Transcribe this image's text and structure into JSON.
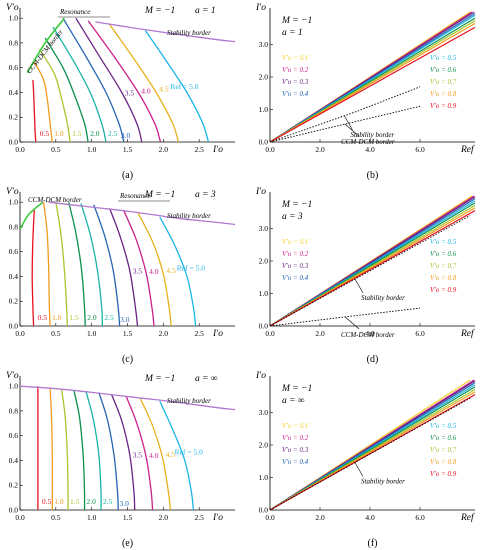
{
  "chart_data": [
    {
      "id": "a",
      "type": "line",
      "caption": "(a)",
      "ylabel": "V'o",
      "xlabel": "I'o",
      "params": [
        "M = −1",
        "a = 1"
      ],
      "xlim": [
        0,
        3
      ],
      "ylim": [
        0,
        1.05
      ],
      "xticks": [
        "0.0",
        "0.5",
        "1.0",
        "1.5",
        "2.0",
        "2.5"
      ],
      "yticks": [
        "0.0",
        "0.2",
        "0.4",
        "0.6",
        "0.8",
        "1.0"
      ],
      "annotations": {
        "stability": "Stability border",
        "ccm": "CCM-DCM border",
        "resonance": "Resonance"
      },
      "stability": {
        "x": [
          1.05,
          1.6,
          2.2,
          2.7,
          3.0
        ],
        "y": [
          0.97,
          0.92,
          0.87,
          0.83,
          0.81
        ]
      },
      "ccm": {
        "x": [
          0.1,
          0.35,
          0.62
        ],
        "y": [
          0.56,
          0.8,
          1.0
        ]
      },
      "series": [
        {
          "label": "0.5",
          "color": "#e8101e",
          "x": [
            0.18,
            0.19,
            0.2,
            0.21,
            0.22
          ],
          "y": [
            0.5,
            0.4,
            0.25,
            0.1,
            0.0
          ]
        },
        {
          "label": "1.0",
          "color": "#f39a1c",
          "x": [
            0.2,
            0.33,
            0.38,
            0.42,
            0.45
          ],
          "y": [
            0.65,
            0.5,
            0.35,
            0.15,
            0.0
          ]
        },
        {
          "label": "1.5",
          "color": "#a7c62f",
          "x": [
            0.27,
            0.48,
            0.58,
            0.66,
            0.7
          ],
          "y": [
            0.75,
            0.55,
            0.35,
            0.15,
            0.0
          ]
        },
        {
          "label": "2.0",
          "color": "#0b8f4e",
          "x": [
            0.35,
            0.6,
            0.76,
            0.9,
            0.95
          ],
          "y": [
            0.84,
            0.6,
            0.38,
            0.15,
            0.0
          ]
        },
        {
          "label": "2.5",
          "color": "#1ab3a6",
          "x": [
            0.46,
            0.75,
            0.98,
            1.14,
            1.2
          ],
          "y": [
            0.93,
            0.65,
            0.4,
            0.15,
            0.0
          ]
        },
        {
          "label": "3.0",
          "color": "#2565b3",
          "x": [
            0.6,
            0.93,
            1.2,
            1.38,
            1.45
          ],
          "y": [
            1.0,
            0.68,
            0.4,
            0.15,
            0.0
          ]
        },
        {
          "label": "3.5",
          "color": "#6b2386",
          "x": [
            0.78,
            1.1,
            1.42,
            1.63,
            1.7
          ],
          "y": [
            1.0,
            0.7,
            0.4,
            0.15,
            0.0
          ]
        },
        {
          "label": "4.0",
          "color": "#cc1f8c",
          "x": [
            0.95,
            1.3,
            1.65,
            1.88,
            1.96
          ],
          "y": [
            0.98,
            0.7,
            0.4,
            0.15,
            0.0
          ]
        },
        {
          "label": "4.5",
          "color": "#e7b01c",
          "x": [
            1.25,
            1.58,
            1.9,
            2.13,
            2.21
          ],
          "y": [
            0.95,
            0.68,
            0.4,
            0.15,
            0.0
          ]
        },
        {
          "label": "Ref = 5.0",
          "color": "#1ab5e6",
          "x": [
            1.75,
            2.07,
            2.35,
            2.55,
            2.63
          ],
          "y": [
            0.9,
            0.63,
            0.38,
            0.15,
            0.0
          ]
        }
      ]
    },
    {
      "id": "b",
      "type": "line",
      "caption": "(b)",
      "ylabel": "I'o",
      "xlabel": "Ref",
      "params": [
        "M = −1",
        "a = 1"
      ],
      "xlim": [
        0,
        8.2
      ],
      "ylim": [
        0,
        4
      ],
      "xticks": [
        "0.0",
        "2.0",
        "4.0",
        "6.0"
      ],
      "yticks": [
        "0.0",
        "1.0",
        "2.0",
        "3.0"
      ],
      "annotations": {
        "stability": "Stability border",
        "ccm": "CCM-DCM border"
      },
      "stability": {
        "x": [
          0,
          3.5,
          6
        ],
        "y": [
          0,
          0.95,
          1.7
        ]
      },
      "ccm": {
        "x": [
          0,
          3.0,
          6.0
        ],
        "y": [
          0,
          0.55,
          1.1
        ]
      },
      "series": [
        {
          "label": "V'o = 0.1",
          "color": "#f4d02a",
          "slope": 0.5
        },
        {
          "label": "V'o = 0.2",
          "color": "#cc1f8c",
          "slope": 0.495
        },
        {
          "label": "V'o = 0.3",
          "color": "#6b2386",
          "slope": 0.49
        },
        {
          "label": "V'o = 0.4",
          "color": "#2565b3",
          "slope": 0.482
        },
        {
          "label": "V'o = 0.5",
          "color": "#1ab5e6",
          "slope": 0.475
        },
        {
          "label": "V'o = 0.6",
          "color": "#0b8f4e",
          "slope": 0.465
        },
        {
          "label": "V'o = 0.7",
          "color": "#a7c62f",
          "slope": 0.455
        },
        {
          "label": "V'o = 0.8",
          "color": "#f39a1c",
          "slope": 0.445
        },
        {
          "label": "V'o = 0.9",
          "color": "#e8101e",
          "slope": 0.43
        }
      ]
    },
    {
      "id": "c",
      "type": "line",
      "caption": "(c)",
      "ylabel": "V'o",
      "xlabel": "I'o",
      "params": [
        "M = −1",
        "a = 3"
      ],
      "xlim": [
        0,
        3
      ],
      "ylim": [
        0,
        1.05
      ],
      "xticks": [
        "0.0",
        "0.5",
        "1.0",
        "1.5",
        "2.0",
        "2.5"
      ],
      "yticks": [
        "0.0",
        "0.2",
        "0.4",
        "0.6",
        "0.8",
        "1.0"
      ],
      "annotations": {
        "stability": "Stability border",
        "ccm": "CCM-DCM border",
        "resonance": "Resonance"
      },
      "stability": {
        "x": [
          0.4,
          1.0,
          1.6,
          2.2,
          2.7,
          3.0
        ],
        "y": [
          1.0,
          0.96,
          0.92,
          0.87,
          0.84,
          0.82
        ]
      },
      "ccm": {
        "x": [
          0.0,
          0.12,
          0.32
        ],
        "y": [
          0.78,
          0.9,
          1.0
        ]
      },
      "series": [
        {
          "label": "0.5",
          "color": "#e8101e",
          "x": [
            0.2,
            0.18,
            0.17,
            0.18,
            0.19
          ],
          "y": [
            0.95,
            0.7,
            0.4,
            0.15,
            0.0
          ]
        },
        {
          "label": "1.0",
          "color": "#f39a1c",
          "x": [
            0.33,
            0.38,
            0.4,
            0.41,
            0.42
          ],
          "y": [
            1.0,
            0.75,
            0.45,
            0.15,
            0.0
          ]
        },
        {
          "label": "1.5",
          "color": "#a7c62f",
          "x": [
            0.5,
            0.57,
            0.62,
            0.65,
            0.66
          ],
          "y": [
            1.0,
            0.75,
            0.45,
            0.15,
            0.0
          ]
        },
        {
          "label": "2.0",
          "color": "#0b8f4e",
          "x": [
            0.68,
            0.78,
            0.86,
            0.9,
            0.91
          ],
          "y": [
            1.0,
            0.75,
            0.45,
            0.15,
            0.0
          ]
        },
        {
          "label": "2.5",
          "color": "#1ab3a6",
          "x": [
            0.85,
            0.98,
            1.08,
            1.14,
            1.15
          ],
          "y": [
            0.99,
            0.74,
            0.45,
            0.15,
            0.0
          ]
        },
        {
          "label": "3.0",
          "color": "#2565b3",
          "x": [
            1.03,
            1.18,
            1.3,
            1.37,
            1.39
          ],
          "y": [
            0.98,
            0.73,
            0.45,
            0.15,
            0.0
          ]
        },
        {
          "label": "3.5",
          "color": "#6b2386",
          "x": [
            1.25,
            1.4,
            1.53,
            1.61,
            1.64
          ],
          "y": [
            0.95,
            0.72,
            0.45,
            0.15,
            0.0
          ]
        },
        {
          "label": "4.0",
          "color": "#cc1f8c",
          "x": [
            1.45,
            1.62,
            1.76,
            1.84,
            1.87
          ],
          "y": [
            0.93,
            0.7,
            0.43,
            0.15,
            0.0
          ]
        },
        {
          "label": "4.5",
          "color": "#e7b01c",
          "x": [
            1.65,
            1.85,
            2.0,
            2.08,
            2.11
          ],
          "y": [
            0.91,
            0.68,
            0.42,
            0.15,
            0.0
          ]
        },
        {
          "label": "Ref = 5.0",
          "color": "#1ab5e6",
          "x": [
            1.95,
            2.16,
            2.33,
            2.42,
            2.45
          ],
          "y": [
            0.88,
            0.65,
            0.4,
            0.15,
            0.0
          ]
        }
      ]
    },
    {
      "id": "d",
      "type": "line",
      "caption": "(d)",
      "ylabel": "I'o",
      "xlabel": "Ref",
      "params": [
        "M = −1",
        "a = 3"
      ],
      "xlim": [
        0,
        8.2
      ],
      "ylim": [
        0,
        4
      ],
      "xticks": [
        "0.0",
        "2.0",
        "4.0",
        "6.0"
      ],
      "yticks": [
        "0.0",
        "1.0",
        "2.0",
        "3.0"
      ],
      "annotations": {
        "stability": "Stability border",
        "ccm": "CCM-DCM border"
      },
      "stability": {
        "x": [
          0,
          4,
          8
        ],
        "y": [
          0,
          1.7,
          3.4
        ]
      },
      "ccm": {
        "x": [
          0,
          3,
          6
        ],
        "y": [
          0,
          0.28,
          0.55
        ]
      },
      "series": [
        {
          "label": "V'o = 0.1",
          "color": "#f4d02a",
          "slope": 0.495
        },
        {
          "label": "V'o = 0.2",
          "color": "#cc1f8c",
          "slope": 0.49
        },
        {
          "label": "V'o = 0.3",
          "color": "#6b2386",
          "slope": 0.485
        },
        {
          "label": "V'o = 0.4",
          "color": "#2565b3",
          "slope": 0.478
        },
        {
          "label": "V'o = 0.5",
          "color": "#1ab5e6",
          "slope": 0.47
        },
        {
          "label": "V'o = 0.6",
          "color": "#0b8f4e",
          "slope": 0.462
        },
        {
          "label": "V'o = 0.7",
          "color": "#a7c62f",
          "slope": 0.452
        },
        {
          "label": "V'o = 0.8",
          "color": "#f39a1c",
          "slope": 0.443
        },
        {
          "label": "V'o = 0.9",
          "color": "#e8101e",
          "slope": 0.433
        }
      ]
    },
    {
      "id": "e",
      "type": "line",
      "caption": "(e)",
      "ylabel": "V'o",
      "xlabel": "I'o",
      "params": [
        "M = −1",
        "a = ∞"
      ],
      "xlim": [
        0,
        3
      ],
      "ylim": [
        0,
        1.05
      ],
      "xticks": [
        "0.0",
        "0.5",
        "1.0",
        "1.5",
        "2.0",
        "2.5"
      ],
      "yticks": [
        "0.0",
        "0.2",
        "0.4",
        "0.6",
        "0.8",
        "1.0"
      ],
      "annotations": {
        "stability": "Stability border"
      },
      "stability": {
        "x": [
          0.0,
          0.5,
          1.0,
          1.6,
          2.2,
          2.7,
          3.0
        ],
        "y": [
          1.0,
          0.98,
          0.95,
          0.91,
          0.87,
          0.83,
          0.81
        ]
      },
      "series": [
        {
          "label": "0.5",
          "color": "#e8101e",
          "x": [
            0.25,
            0.25,
            0.25,
            0.25,
            0.25
          ],
          "y": [
            1.0,
            0.75,
            0.45,
            0.15,
            0.0
          ]
        },
        {
          "label": "1.0",
          "color": "#f39a1c",
          "x": [
            0.42,
            0.44,
            0.45,
            0.45,
            0.45
          ],
          "y": [
            0.99,
            0.75,
            0.45,
            0.15,
            0.0
          ]
        },
        {
          "label": "1.5",
          "color": "#a7c62f",
          "x": [
            0.58,
            0.63,
            0.66,
            0.67,
            0.67
          ],
          "y": [
            0.98,
            0.75,
            0.45,
            0.15,
            0.0
          ]
        },
        {
          "label": "2.0",
          "color": "#0b8f4e",
          "x": [
            0.75,
            0.83,
            0.88,
            0.9,
            0.9
          ],
          "y": [
            0.97,
            0.75,
            0.45,
            0.15,
            0.0
          ]
        },
        {
          "label": "2.5",
          "color": "#1ab3a6",
          "x": [
            0.92,
            1.02,
            1.1,
            1.13,
            1.13
          ],
          "y": [
            0.96,
            0.74,
            0.45,
            0.15,
            0.0
          ]
        },
        {
          "label": "3.0",
          "color": "#2565b3",
          "x": [
            1.1,
            1.22,
            1.31,
            1.36,
            1.37
          ],
          "y": [
            0.95,
            0.73,
            0.45,
            0.15,
            0.0
          ]
        },
        {
          "label": "3.5",
          "color": "#6b2386",
          "x": [
            1.28,
            1.42,
            1.53,
            1.59,
            1.6
          ],
          "y": [
            0.93,
            0.72,
            0.45,
            0.15,
            0.0
          ]
        },
        {
          "label": "4.0",
          "color": "#cc1f8c",
          "x": [
            1.48,
            1.63,
            1.76,
            1.83,
            1.85
          ],
          "y": [
            0.92,
            0.7,
            0.43,
            0.15,
            0.0
          ]
        },
        {
          "label": "4.5",
          "color": "#e7b01c",
          "x": [
            1.68,
            1.85,
            1.99,
            2.07,
            2.1
          ],
          "y": [
            0.9,
            0.68,
            0.42,
            0.15,
            0.0
          ]
        },
        {
          "label": "Ref = 5.0",
          "color": "#1ab5e6",
          "x": [
            1.95,
            2.13,
            2.3,
            2.39,
            2.42
          ],
          "y": [
            0.88,
            0.65,
            0.4,
            0.15,
            0.0
          ]
        }
      ]
    },
    {
      "id": "f",
      "type": "line",
      "caption": "(f)",
      "ylabel": "I'o",
      "xlabel": "Ref",
      "params": [
        "M = −1",
        "a = ∞"
      ],
      "xlim": [
        0,
        8.2
      ],
      "ylim": [
        0,
        4
      ],
      "xticks": [
        "0.0",
        "2.0",
        "4.0",
        "6.0"
      ],
      "yticks": [
        "0.0",
        "1.0",
        "2.0",
        "3.0"
      ],
      "annotations": {
        "stability": "Stability border"
      },
      "stability": {
        "x": [
          0,
          4,
          8
        ],
        "y": [
          0,
          1.72,
          3.44
        ]
      },
      "series": [
        {
          "label": "V'o = 0.1",
          "color": "#f4d02a",
          "slope": 0.5
        },
        {
          "label": "V'o = 0.2",
          "color": "#cc1f8c",
          "slope": 0.49
        },
        {
          "label": "V'o = 0.3",
          "color": "#6b2386",
          "slope": 0.485
        },
        {
          "label": "V'o = 0.4",
          "color": "#2565b3",
          "slope": 0.478
        },
        {
          "label": "V'o = 0.5",
          "color": "#1ab5e6",
          "slope": 0.47
        },
        {
          "label": "V'o = 0.6",
          "color": "#0b8f4e",
          "slope": 0.462
        },
        {
          "label": "V'o = 0.7",
          "color": "#a7c62f",
          "slope": 0.452
        },
        {
          "label": "V'o = 0.8",
          "color": "#f39a1c",
          "slope": 0.443
        },
        {
          "label": "V'o = 0.9",
          "color": "#e8101e",
          "slope": 0.433
        }
      ]
    }
  ]
}
